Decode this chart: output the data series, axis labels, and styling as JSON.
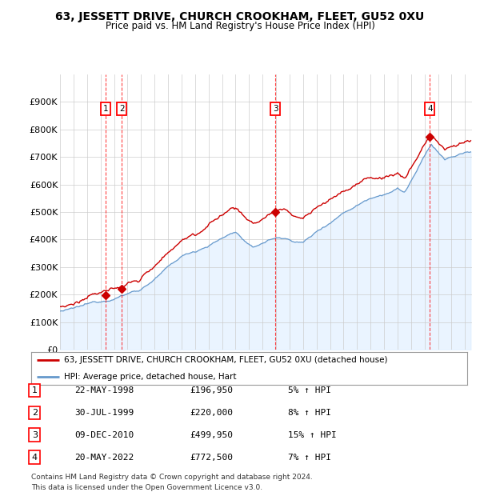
{
  "title": "63, JESSETT DRIVE, CHURCH CROOKHAM, FLEET, GU52 0XU",
  "subtitle": "Price paid vs. HM Land Registry's House Price Index (HPI)",
  "ylim": [
    0,
    1000000
  ],
  "yticks": [
    0,
    100000,
    200000,
    300000,
    400000,
    500000,
    600000,
    700000,
    800000,
    900000
  ],
  "ytick_labels": [
    "£0",
    "£100K",
    "£200K",
    "£300K",
    "£400K",
    "£500K",
    "£600K",
    "£700K",
    "£800K",
    "£900K"
  ],
  "xlim_start": 1995.0,
  "xlim_end": 2025.5,
  "background_color": "#ffffff",
  "grid_color": "#cccccc",
  "line_color_red": "#cc0000",
  "line_color_blue": "#6699cc",
  "fill_color_blue": "#ddeeff",
  "transactions": [
    {
      "num": 1,
      "date_dec": 1998.39,
      "price": 196950,
      "label": "1",
      "x_line": 1998.39
    },
    {
      "num": 2,
      "date_dec": 1999.58,
      "price": 220000,
      "label": "2",
      "x_line": 1999.58
    },
    {
      "num": 3,
      "date_dec": 2010.94,
      "price": 499950,
      "label": "3",
      "x_line": 2010.94
    },
    {
      "num": 4,
      "date_dec": 2022.39,
      "price": 772500,
      "label": "4",
      "x_line": 2022.39
    }
  ],
  "table_rows": [
    {
      "num": "1",
      "date": "22-MAY-1998",
      "price": "£196,950",
      "change": "5% ↑ HPI"
    },
    {
      "num": "2",
      "date": "30-JUL-1999",
      "price": "£220,000",
      "change": "8% ↑ HPI"
    },
    {
      "num": "3",
      "date": "09-DEC-2010",
      "price": "£499,950",
      "change": "15% ↑ HPI"
    },
    {
      "num": "4",
      "date": "20-MAY-2022",
      "price": "£772,500",
      "change": "7% ↑ HPI"
    }
  ],
  "legend_label_red": "63, JESSETT DRIVE, CHURCH CROOKHAM, FLEET, GU52 0XU (detached house)",
  "legend_label_blue": "HPI: Average price, detached house, Hart",
  "footer_line1": "Contains HM Land Registry data © Crown copyright and database right 2024.",
  "footer_line2": "This data is licensed under the Open Government Licence v3.0."
}
